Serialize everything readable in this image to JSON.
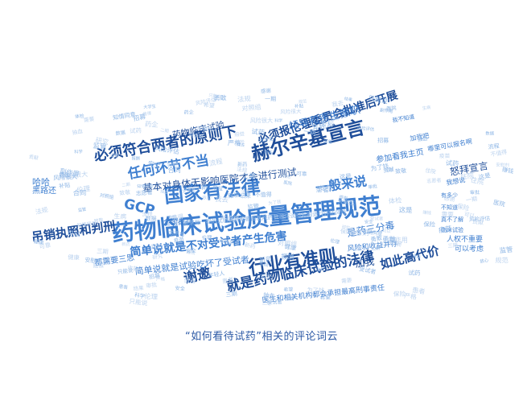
{
  "caption": "“如何看待试药”相关的评论词云",
  "colors": {
    "dark": "#1f4e9a",
    "mid": "#3f7fd0",
    "light": "#8fb7e6",
    "faint": "#bcd3ef"
  },
  "words": [
    {
      "t": "药物临床试验质量管理规范",
      "tone": "mid"
    },
    {
      "t": "国家有法律",
      "tone": "mid"
    },
    {
      "t": "赫尔辛基宣言",
      "tone": "dark"
    },
    {
      "t": "行业有准则",
      "tone": "dark"
    },
    {
      "t": "必须符合两者的原则下",
      "tone": "dark"
    },
    {
      "t": "任何环节不当",
      "tone": "mid"
    },
    {
      "t": "必须报伦理委员会批准后开展",
      "tone": "dark"
    },
    {
      "t": "领导和医生撤职",
      "tone": "mid"
    },
    {
      "t": "药物临床试验",
      "tone": "dark"
    },
    {
      "t": "一般来说",
      "tone": "mid"
    },
    {
      "t": "GCP",
      "tone": "mid"
    },
    {
      "t": "基本对身体无影响医院才会进行测试",
      "tone": "dark"
    },
    {
      "t": "全国都有",
      "tone": "mid"
    },
    {
      "t": "要求每一期的试验药物都要由医院药物临床试验机构进行评估风险",
      "tone": "light"
    },
    {
      "t": "简单说就是不对受试者产生危害",
      "tone": "mid"
    },
    {
      "t": "是药三分毒",
      "tone": "mid"
    },
    {
      "t": "风险和收益并存",
      "tone": "mid"
    },
    {
      "t": "加我",
      "tone": "dark"
    },
    {
      "t": "如此高代价",
      "tone": "dark"
    },
    {
      "t": "谢邀",
      "tone": "dark"
    },
    {
      "t": "就是药物临床试验的法律",
      "tone": "dark"
    },
    {
      "t": "简单说就是试验吃坏了受试者",
      "tone": "mid"
    },
    {
      "t": "医生和相关机构都会承担最高刑事责任",
      "tone": "mid"
    },
    {
      "t": "吊销执照和判刑",
      "tone": "dark"
    },
    {
      "t": "都需要三思",
      "tone": "mid"
    },
    {
      "t": "哈哈",
      "tone": "mid"
    },
    {
      "t": "黑路还",
      "tone": "mid"
    },
    {
      "t": "参加看我主页",
      "tone": "mid"
    },
    {
      "t": "怒拜宣言",
      "tone": "dark"
    },
    {
      "t": "人权不重要",
      "tone": "mid"
    },
    {
      "t": "可以考虑",
      "tone": "mid"
    },
    {
      "t": "我想说",
      "tone": "mid"
    },
    {
      "t": "我不知道",
      "tone": "mid"
    },
    {
      "t": "加我吧",
      "tone": "mid"
    },
    {
      "t": "哪里可以报名啊",
      "tone": "mid"
    },
    {
      "t": "有多少",
      "tone": "mid"
    },
    {
      "t": "不知道",
      "tone": "mid"
    },
    {
      "t": "真不了解",
      "tone": "mid"
    },
    {
      "t": "临床试验",
      "tone": "mid"
    },
    {
      "t": "风险很大",
      "tone": "mid"
    },
    {
      "t": "这是",
      "tone": "mid"
    },
    {
      "t": "我去",
      "tone": "mid"
    },
    {
      "t": "只能说",
      "tone": "mid"
    },
    {
      "t": "安全",
      "tone": "mid"
    },
    {
      "t": "赚钱",
      "tone": "mid"
    },
    {
      "t": "收益",
      "tone": "mid"
    },
    {
      "t": "试药",
      "tone": "mid"
    },
    {
      "t": "患者",
      "tone": "mid"
    },
    {
      "t": "受试者",
      "tone": "mid"
    },
    {
      "t": "伦理",
      "tone": "mid"
    },
    {
      "t": "补贴",
      "tone": "mid"
    },
    {
      "t": "医院",
      "tone": "mid"
    },
    {
      "t": "保险",
      "tone": "mid"
    },
    {
      "t": "新药",
      "tone": "mid"
    },
    {
      "t": "知情同意",
      "tone": "mid"
    },
    {
      "t": "副作用",
      "tone": "mid"
    },
    {
      "t": "风险评估",
      "tone": "mid"
    },
    {
      "t": "志愿者",
      "tone": "mid"
    },
    {
      "t": "报酬",
      "tone": "mid"
    },
    {
      "t": "监管",
      "tone": "mid"
    },
    {
      "t": "药企",
      "tone": "mid"
    },
    {
      "t": "体检",
      "tone": "mid"
    },
    {
      "t": "住院",
      "tone": "mid"
    },
    {
      "t": "抽血",
      "tone": "mid"
    },
    {
      "t": "一期",
      "tone": "mid"
    },
    {
      "t": "二期",
      "tone": "mid"
    },
    {
      "t": "三期",
      "tone": "mid"
    },
    {
      "t": "对照组",
      "tone": "mid"
    },
    {
      "t": "安慰剂",
      "tone": "mid"
    },
    {
      "t": "招募",
      "tone": "mid"
    },
    {
      "t": "合同",
      "tone": "mid"
    },
    {
      "t": "赔偿",
      "tone": "mid"
    },
    {
      "t": "健康",
      "tone": "mid"
    },
    {
      "t": "年轻人",
      "tone": "mid"
    },
    {
      "t": "大学生",
      "tone": "mid"
    },
    {
      "t": "生病",
      "tone": "mid"
    },
    {
      "t": "治疗",
      "tone": "mid"
    },
    {
      "t": "希望",
      "tone": "mid"
    },
    {
      "t": "需要",
      "tone": "mid"
    },
    {
      "t": "可以",
      "tone": "mid"
    },
    {
      "t": "为了钱",
      "tone": "mid"
    },
    {
      "t": "不值得",
      "tone": "mid"
    },
    {
      "t": "值得",
      "tone": "mid"
    },
    {
      "t": "勇敢",
      "tone": "mid"
    },
    {
      "t": "贡献",
      "tone": "mid"
    },
    {
      "t": "感谢",
      "tone": "mid"
    },
    {
      "t": "致敬",
      "tone": "mid"
    },
    {
      "t": "法规",
      "tone": "mid"
    },
    {
      "t": "规范",
      "tone": "mid"
    },
    {
      "t": "严格",
      "tone": "mid"
    },
    {
      "t": "流程",
      "tone": "mid"
    },
    {
      "t": "审批",
      "tone": "mid"
    },
    {
      "t": "数据",
      "tone": "mid"
    },
    {
      "t": "结果",
      "tone": "mid"
    },
    {
      "t": "科学",
      "tone": "mid"
    },
    {
      "t": "研究",
      "tone": "mid"
    },
    {
      "t": "疫苗",
      "tone": "mid"
    },
    {
      "t": "可靠",
      "tone": "mid"
    },
    {
      "t": "放心",
      "tone": "mid"
    }
  ]
}
